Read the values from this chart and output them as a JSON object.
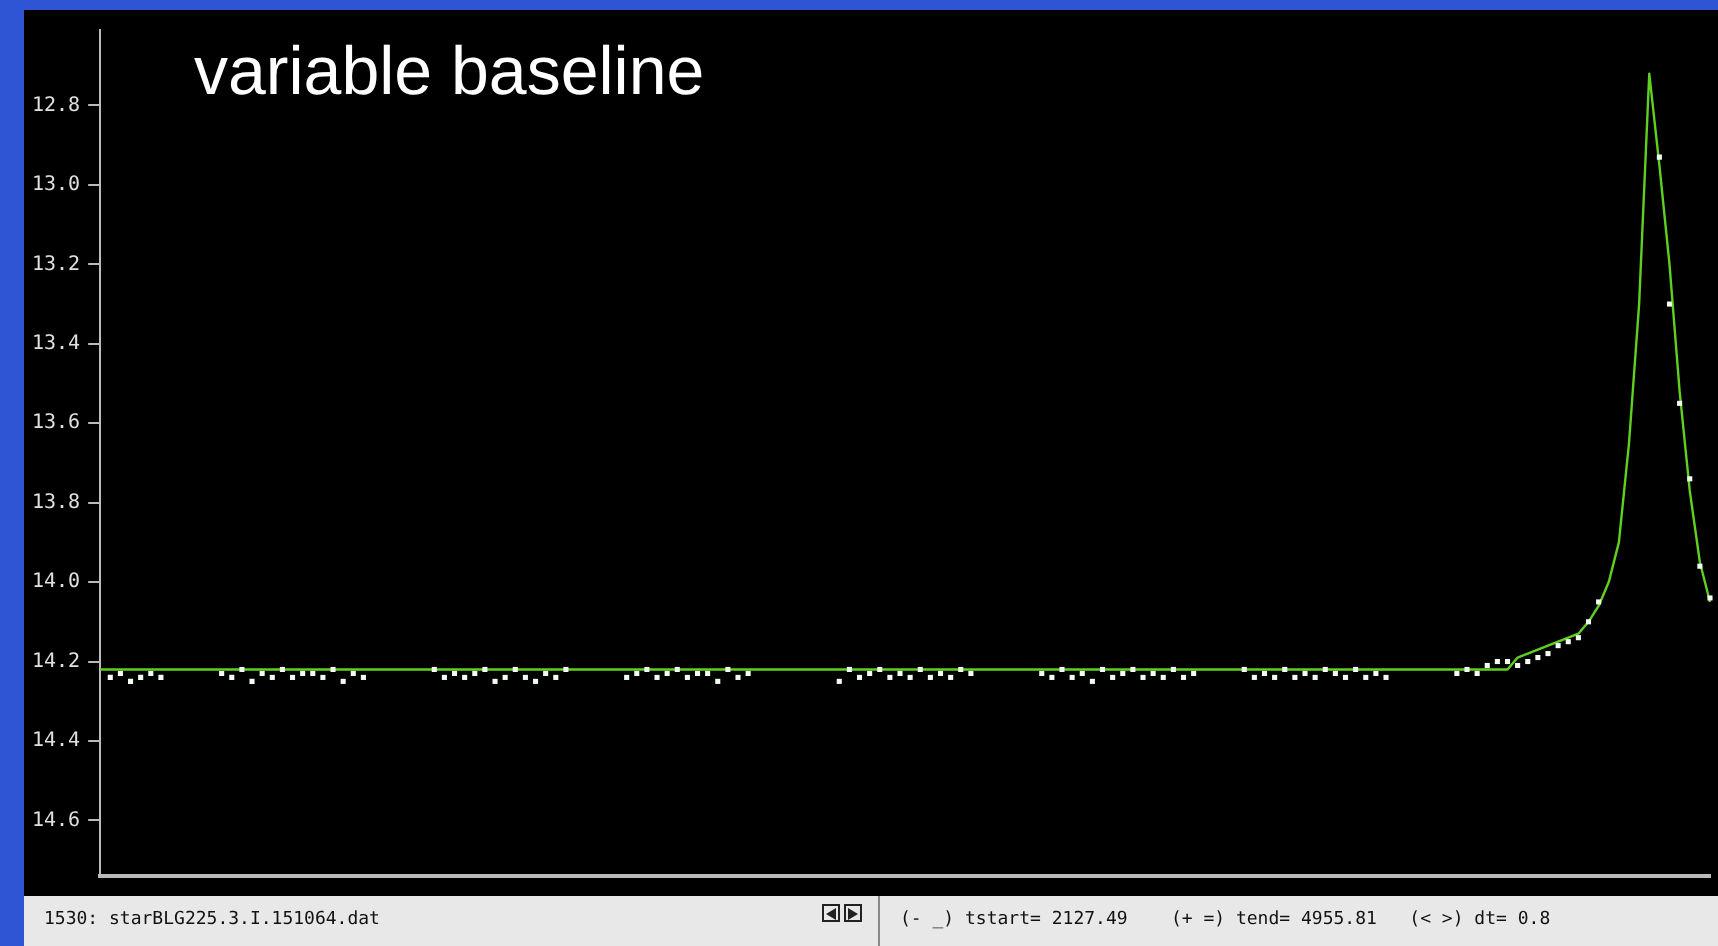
{
  "chart_data": {
    "type": "line",
    "title": "variable baseline",
    "tick_labels": "y",
    "grid": false,
    "legend": false,
    "ylim": [
      14.74,
      12.61
    ],
    "yticks": [
      12.8,
      {
        "value": 13,
        "label": "13.0"
      },
      13.2,
      13.4,
      13.6,
      13.8,
      {
        "value": 14,
        "label": "14.0"
      },
      14.2,
      14.4,
      14.6
    ],
    "categories": [
      null,
      null,
      null,
      null,
      null,
      null,
      null,
      null,
      null,
      null,
      null,
      null,
      null,
      null,
      null,
      null,
      null,
      null,
      null,
      null,
      null,
      null,
      null,
      null,
      null,
      null,
      null,
      null,
      null,
      null,
      null,
      null,
      null,
      null,
      null,
      null,
      null,
      null,
      null,
      null,
      null,
      null,
      null,
      null,
      null,
      null,
      null,
      null,
      null,
      null,
      null,
      null,
      null,
      null,
      null,
      null,
      null,
      null,
      null,
      null,
      null,
      null,
      null,
      null,
      null,
      null,
      null,
      null,
      null,
      null,
      null,
      null,
      null,
      null,
      null,
      null,
      null,
      null,
      null,
      null,
      null,
      null,
      null,
      null,
      null,
      null,
      null,
      null,
      null,
      null,
      null,
      null,
      null,
      null,
      null,
      null,
      null,
      null,
      null,
      null,
      null,
      null,
      null,
      null,
      null,
      null,
      null,
      null,
      null,
      null,
      null,
      null,
      null,
      null,
      null,
      null,
      null,
      null,
      null,
      null,
      null,
      null,
      null,
      null,
      null,
      null,
      null,
      null,
      null,
      null,
      null,
      null,
      null,
      null,
      null,
      null,
      null,
      null,
      null,
      null,
      null,
      null,
      null,
      null,
      null,
      null,
      null,
      null,
      null,
      null,
      null,
      null,
      null,
      null,
      null,
      null,
      null,
      null,
      null,
      null
    ],
    "series": [
      {
        "color": "#5fd020",
        "line_style": "solid",
        "values": [
          14.22,
          14.22,
          14.22,
          14.22,
          14.22,
          14.22,
          14.22,
          14.22,
          14.22,
          14.22,
          14.22,
          14.22,
          14.22,
          14.22,
          14.22,
          14.22,
          14.22,
          14.22,
          14.22,
          14.22,
          14.22,
          14.22,
          14.22,
          14.22,
          14.22,
          14.22,
          14.22,
          14.22,
          14.22,
          14.22,
          14.22,
          14.22,
          14.22,
          14.22,
          14.22,
          14.22,
          14.22,
          14.22,
          14.22,
          14.22,
          14.22,
          14.22,
          14.22,
          14.22,
          14.22,
          14.22,
          14.22,
          14.22,
          14.22,
          14.22,
          14.22,
          14.22,
          14.22,
          14.22,
          14.22,
          14.22,
          14.22,
          14.22,
          14.22,
          14.22,
          14.22,
          14.22,
          14.22,
          14.22,
          14.22,
          14.22,
          14.22,
          14.22,
          14.22,
          14.22,
          14.22,
          14.22,
          14.22,
          14.22,
          14.22,
          14.22,
          14.22,
          14.22,
          14.22,
          14.22,
          14.22,
          14.22,
          14.22,
          14.22,
          14.22,
          14.22,
          14.22,
          14.22,
          14.22,
          14.22,
          14.22,
          14.22,
          14.22,
          14.22,
          14.22,
          14.22,
          14.22,
          14.22,
          14.22,
          14.22,
          14.22,
          14.22,
          14.22,
          14.22,
          14.22,
          14.22,
          14.22,
          14.22,
          14.22,
          14.22,
          14.22,
          14.22,
          14.22,
          14.22,
          14.22,
          14.22,
          14.22,
          14.22,
          14.22,
          14.22,
          14.22,
          14.22,
          14.22,
          14.22,
          14.22,
          14.22,
          14.22,
          14.22,
          14.22,
          14.22,
          14.22,
          14.22,
          14.22,
          14.22,
          14.22,
          14.22,
          14.22,
          14.22,
          14.22,
          14.22,
          14.19,
          14.18,
          14.17,
          14.16,
          14.15,
          14.14,
          14.13,
          14.1,
          14.06,
          14.0,
          13.9,
          13.65,
          13.3,
          12.72,
          12.95,
          13.2,
          13.52,
          13.77,
          13.95,
          14.05
        ]
      },
      {
        "type": "scatter",
        "marker": "square",
        "color": "#f0fff0",
        "values": [
          null,
          14.24,
          14.23,
          14.25,
          14.24,
          14.23,
          14.24,
          null,
          null,
          null,
          null,
          null,
          14.23,
          14.24,
          14.22,
          14.25,
          14.23,
          14.24,
          14.22,
          14.24,
          14.23,
          14.23,
          14.24,
          14.22,
          14.25,
          14.23,
          14.24,
          null,
          null,
          null,
          null,
          null,
          null,
          14.22,
          14.24,
          14.23,
          14.24,
          14.23,
          14.22,
          14.25,
          14.24,
          14.22,
          14.24,
          14.25,
          14.23,
          14.24,
          14.22,
          null,
          null,
          null,
          null,
          null,
          14.24,
          14.23,
          14.22,
          14.24,
          14.23,
          14.22,
          14.24,
          14.23,
          14.23,
          14.25,
          14.22,
          14.24,
          14.23,
          null,
          null,
          null,
          null,
          null,
          null,
          null,
          null,
          14.25,
          14.22,
          14.24,
          14.23,
          14.22,
          14.24,
          14.23,
          14.24,
          14.22,
          14.24,
          14.23,
          14.24,
          14.22,
          14.23,
          null,
          null,
          null,
          null,
          null,
          null,
          14.23,
          14.24,
          14.22,
          14.24,
          14.23,
          14.25,
          14.22,
          14.24,
          14.23,
          14.22,
          14.24,
          14.23,
          14.24,
          14.22,
          14.24,
          14.23,
          null,
          null,
          null,
          null,
          14.22,
          14.24,
          14.23,
          14.24,
          14.22,
          14.24,
          14.23,
          14.24,
          14.22,
          14.23,
          14.24,
          14.22,
          14.24,
          14.23,
          14.24,
          null,
          null,
          null,
          null,
          null,
          null,
          14.23,
          14.22,
          14.23,
          14.21,
          14.2,
          14.2,
          14.21,
          14.2,
          14.19,
          14.18,
          14.16,
          14.15,
          14.14,
          14.1,
          14.05,
          null,
          null,
          null,
          null,
          null,
          12.93,
          13.3,
          13.55,
          13.74,
          13.96,
          14.04
        ]
      }
    ],
    "annotations": [
      "1530: starBLG225.3.I.151064.dat",
      "(- _) tstart= 2127.49    (+ =) tend= 4955.81   (< >) dt= 0.8"
    ]
  }
}
